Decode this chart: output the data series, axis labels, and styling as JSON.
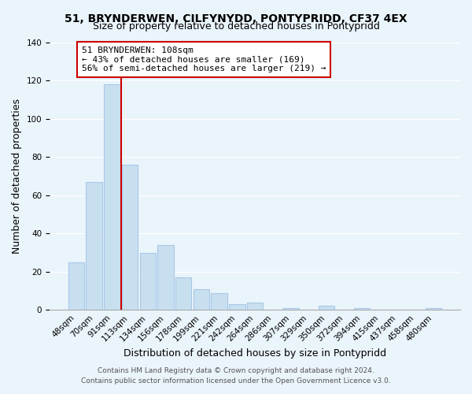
{
  "title_line1": "51, BRYNDERWEN, CILFYNYDD, PONTYPRIDD, CF37 4EX",
  "title_line2": "Size of property relative to detached houses in Pontypridd",
  "xlabel": "Distribution of detached houses by size in Pontypridd",
  "ylabel": "Number of detached properties",
  "bar_labels": [
    "48sqm",
    "70sqm",
    "91sqm",
    "113sqm",
    "134sqm",
    "156sqm",
    "178sqm",
    "199sqm",
    "221sqm",
    "242sqm",
    "264sqm",
    "286sqm",
    "307sqm",
    "329sqm",
    "350sqm",
    "372sqm",
    "394sqm",
    "415sqm",
    "437sqm",
    "458sqm",
    "480sqm"
  ],
  "bar_values": [
    25,
    67,
    118,
    76,
    30,
    34,
    17,
    11,
    9,
    3,
    4,
    0,
    1,
    0,
    2,
    0,
    1,
    0,
    0,
    0,
    1
  ],
  "bar_color": "#c8dff0",
  "bar_edge_color": "#a8c8e8",
  "vline_color": "#cc0000",
  "vline_x_index": 2.5,
  "ylim": [
    0,
    140
  ],
  "yticks": [
    0,
    20,
    40,
    60,
    80,
    100,
    120,
    140
  ],
  "annotation_text": "51 BRYNDERWEN: 108sqm\n← 43% of detached houses are smaller (169)\n56% of semi-detached houses are larger (219) →",
  "annotation_box_facecolor": "#ffffff",
  "annotation_box_edgecolor": "#cc0000",
  "footer_line1": "Contains HM Land Registry data © Crown copyright and database right 2024.",
  "footer_line2": "Contains public sector information licensed under the Open Government Licence v3.0.",
  "background_color": "#eaf4fb",
  "grid_color": "#ffffff",
  "title_fontsize": 10,
  "subtitle_fontsize": 9,
  "xlabel_fontsize": 9,
  "ylabel_fontsize": 9,
  "tick_fontsize": 7.5,
  "annotation_fontsize": 8,
  "footer_fontsize": 6.5
}
